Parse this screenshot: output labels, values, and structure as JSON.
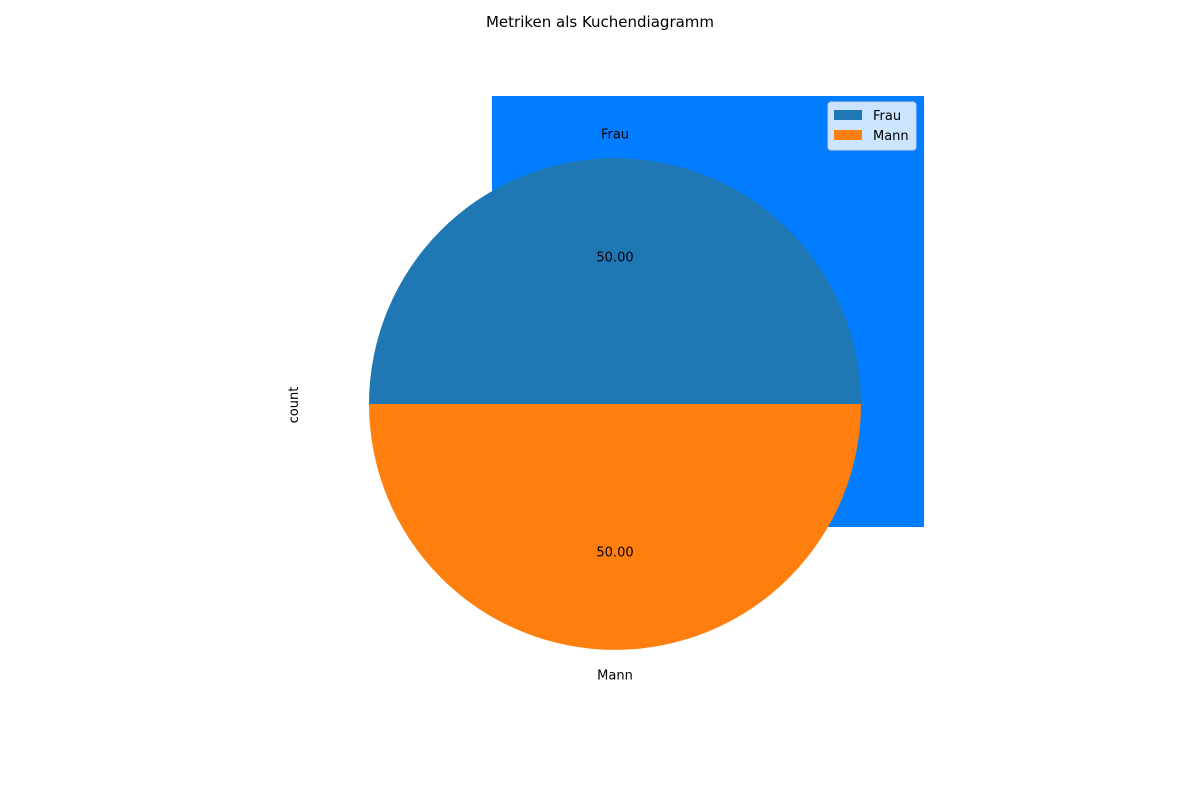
{
  "chart_data": {
    "type": "pie",
    "title": "Metriken als Kuchendiagramm",
    "ylabel": "count",
    "slices": [
      {
        "label": "Frau",
        "value": 50,
        "pct_label": "50.00",
        "color": "#1f77b4"
      },
      {
        "label": "Mann",
        "value": 50,
        "pct_label": "50.00",
        "color": "#ff7f0e"
      }
    ],
    "legend": {
      "position": "top-right",
      "entries": [
        "Frau",
        "Mann"
      ]
    },
    "background_color": "#037dff"
  }
}
